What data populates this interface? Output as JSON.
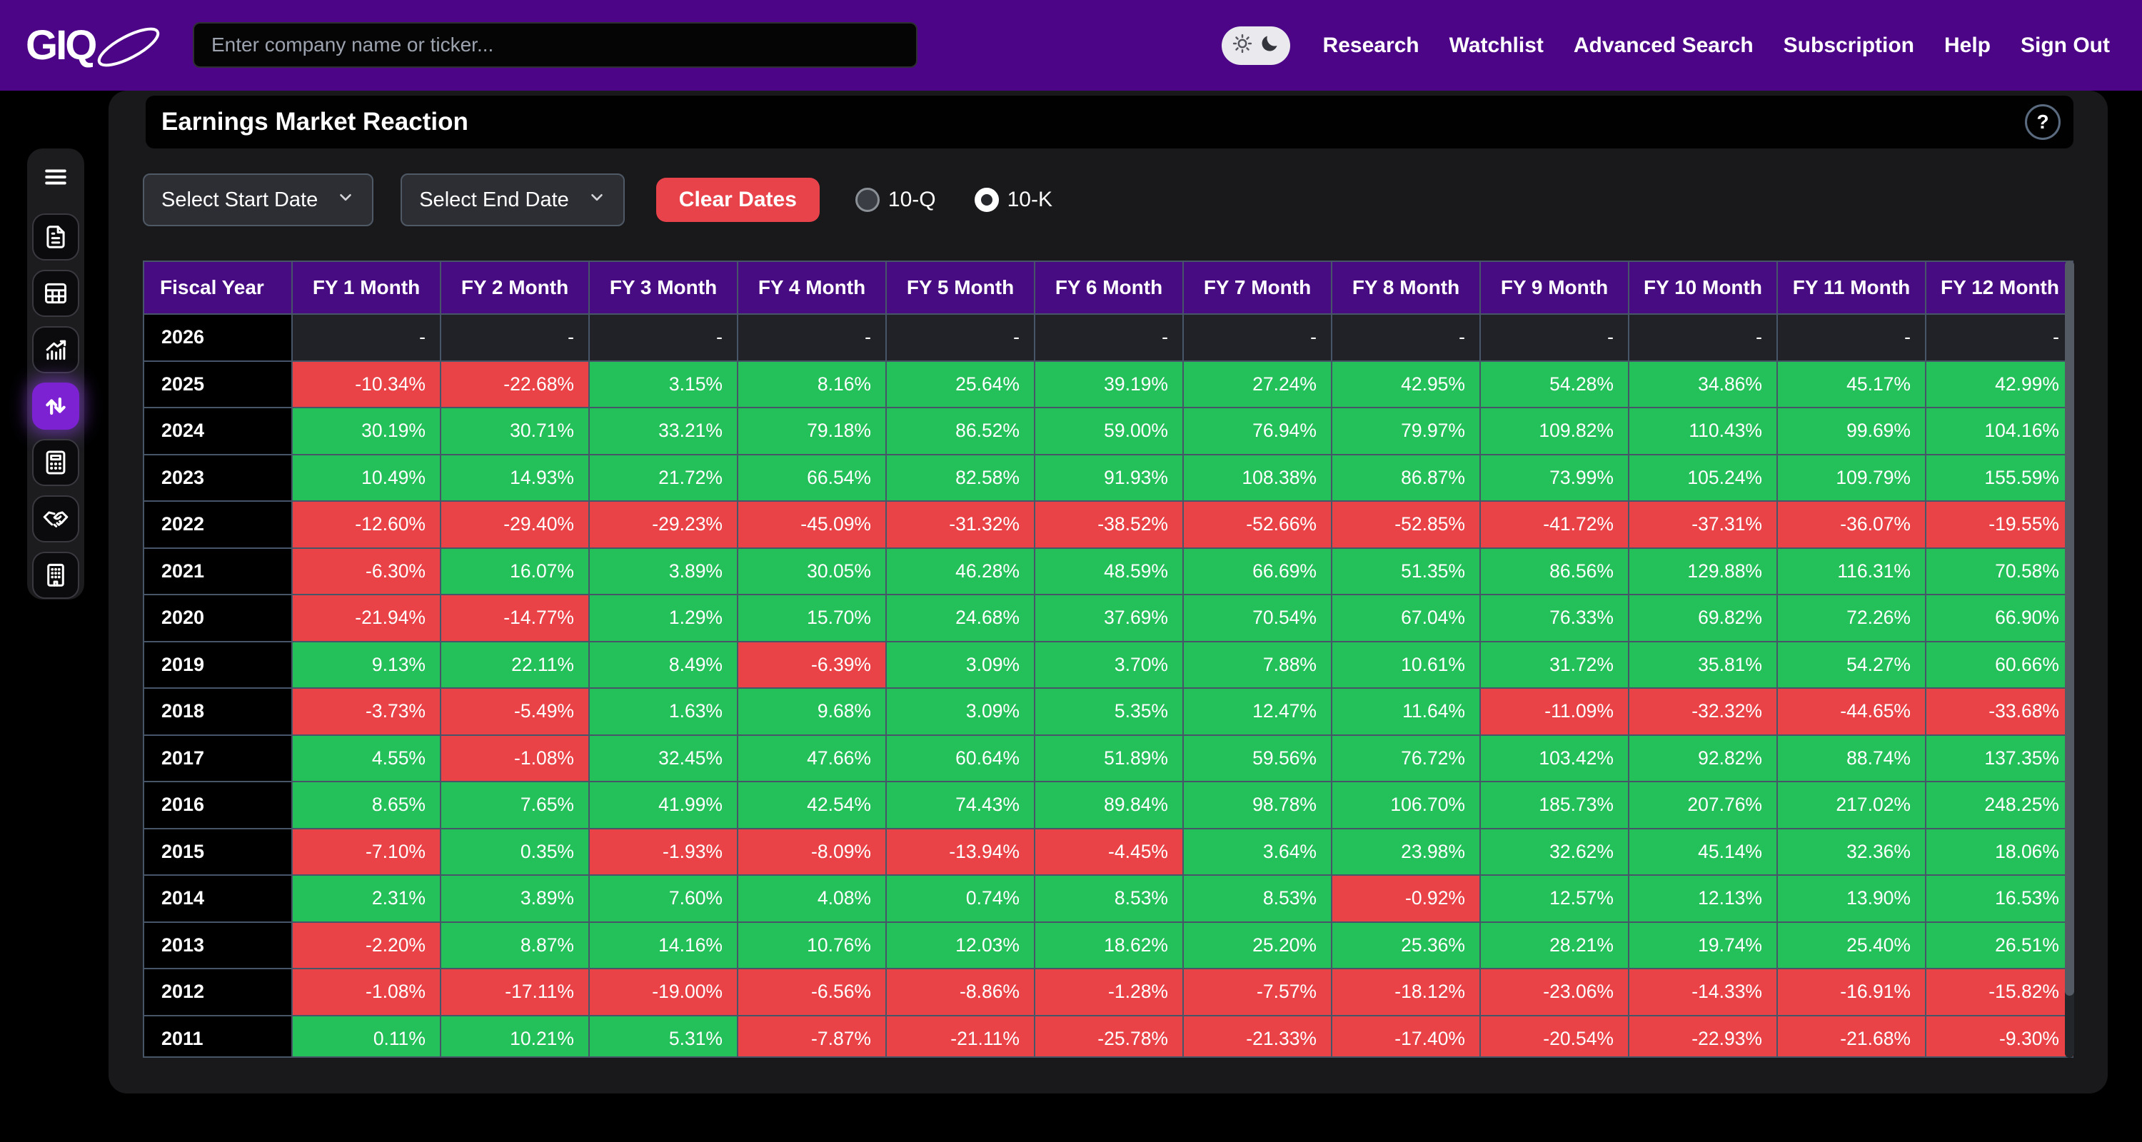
{
  "header": {
    "logo": "GIQ",
    "search_placeholder": "Enter company name or ticker...",
    "nav": [
      "Research",
      "Watchlist",
      "Advanced Search",
      "Subscription",
      "Help",
      "Sign Out"
    ],
    "theme_toggle_icons": [
      "sun-icon",
      "moon-icon"
    ]
  },
  "sidebar": {
    "items": [
      {
        "name": "menu",
        "icon": "hamburger-icon",
        "active": false
      },
      {
        "name": "documents",
        "icon": "file-text-icon",
        "active": false
      },
      {
        "name": "tables",
        "icon": "table-icon",
        "active": false
      },
      {
        "name": "charts",
        "icon": "chart-icon",
        "active": false
      },
      {
        "name": "earnings-reaction",
        "icon": "sort-arrows-icon",
        "active": true
      },
      {
        "name": "calculator",
        "icon": "calculator-icon",
        "active": false
      },
      {
        "name": "deals",
        "icon": "handshake-icon",
        "active": false
      },
      {
        "name": "company",
        "icon": "building-icon",
        "active": false
      }
    ]
  },
  "title_bar": {
    "title": "Earnings Market Reaction",
    "help_label": "?"
  },
  "filters": {
    "start_date_label": "Select Start Date",
    "end_date_label": "Select End Date",
    "clear_button": "Clear Dates",
    "radios": [
      {
        "label": "10-Q",
        "selected": false
      },
      {
        "label": "10-K",
        "selected": true
      }
    ]
  },
  "table": {
    "empty_value": "-",
    "columns": [
      "Fiscal Year",
      "FY 1 Month",
      "FY 2 Month",
      "FY 3 Month",
      "FY 4 Month",
      "FY 5 Month",
      "FY 6 Month",
      "FY 7 Month",
      "FY 8 Month",
      "FY 9 Month",
      "FY 10 Month",
      "FY 11 Month",
      "FY 12 Month"
    ],
    "rows": [
      {
        "year": "2026",
        "values": [
          "-",
          "-",
          "-",
          "-",
          "-",
          "-",
          "-",
          "-",
          "-",
          "-",
          "-",
          "-"
        ]
      },
      {
        "year": "2025",
        "values": [
          "-10.34%",
          "-22.68%",
          "3.15%",
          "8.16%",
          "25.64%",
          "39.19%",
          "27.24%",
          "42.95%",
          "54.28%",
          "34.86%",
          "45.17%",
          "42.99%"
        ]
      },
      {
        "year": "2024",
        "values": [
          "30.19%",
          "30.71%",
          "33.21%",
          "79.18%",
          "86.52%",
          "59.00%",
          "76.94%",
          "79.97%",
          "109.82%",
          "110.43%",
          "99.69%",
          "104.16%"
        ]
      },
      {
        "year": "2023",
        "values": [
          "10.49%",
          "14.93%",
          "21.72%",
          "66.54%",
          "82.58%",
          "91.93%",
          "108.38%",
          "86.87%",
          "73.99%",
          "105.24%",
          "109.79%",
          "155.59%"
        ]
      },
      {
        "year": "2022",
        "values": [
          "-12.60%",
          "-29.40%",
          "-29.23%",
          "-45.09%",
          "-31.32%",
          "-38.52%",
          "-52.66%",
          "-52.85%",
          "-41.72%",
          "-37.31%",
          "-36.07%",
          "-19.55%"
        ]
      },
      {
        "year": "2021",
        "values": [
          "-6.30%",
          "16.07%",
          "3.89%",
          "30.05%",
          "46.28%",
          "48.59%",
          "66.69%",
          "51.35%",
          "86.56%",
          "129.88%",
          "116.31%",
          "70.58%"
        ]
      },
      {
        "year": "2020",
        "values": [
          "-21.94%",
          "-14.77%",
          "1.29%",
          "15.70%",
          "24.68%",
          "37.69%",
          "70.54%",
          "67.04%",
          "76.33%",
          "69.82%",
          "72.26%",
          "66.90%"
        ]
      },
      {
        "year": "2019",
        "values": [
          "9.13%",
          "22.11%",
          "8.49%",
          "-6.39%",
          "3.09%",
          "3.70%",
          "7.88%",
          "10.61%",
          "31.72%",
          "35.81%",
          "54.27%",
          "60.66%"
        ]
      },
      {
        "year": "2018",
        "values": [
          "-3.73%",
          "-5.49%",
          "1.63%",
          "9.68%",
          "3.09%",
          "5.35%",
          "12.47%",
          "11.64%",
          "-11.09%",
          "-32.32%",
          "-44.65%",
          "-33.68%"
        ]
      },
      {
        "year": "2017",
        "values": [
          "4.55%",
          "-1.08%",
          "32.45%",
          "47.66%",
          "60.64%",
          "51.89%",
          "59.56%",
          "76.72%",
          "103.42%",
          "92.82%",
          "88.74%",
          "137.35%"
        ]
      },
      {
        "year": "2016",
        "values": [
          "8.65%",
          "7.65%",
          "41.99%",
          "42.54%",
          "74.43%",
          "89.84%",
          "98.78%",
          "106.70%",
          "185.73%",
          "207.76%",
          "217.02%",
          "248.25%"
        ]
      },
      {
        "year": "2015",
        "values": [
          "-7.10%",
          "0.35%",
          "-1.93%",
          "-8.09%",
          "-13.94%",
          "-4.45%",
          "3.64%",
          "23.98%",
          "32.62%",
          "45.14%",
          "32.36%",
          "18.06%"
        ]
      },
      {
        "year": "2014",
        "values": [
          "2.31%",
          "3.89%",
          "7.60%",
          "4.08%",
          "0.74%",
          "8.53%",
          "8.53%",
          "-0.92%",
          "12.57%",
          "12.13%",
          "13.90%",
          "16.53%"
        ]
      },
      {
        "year": "2013",
        "values": [
          "-2.20%",
          "8.87%",
          "14.16%",
          "10.76%",
          "12.03%",
          "18.62%",
          "25.20%",
          "25.36%",
          "28.21%",
          "19.74%",
          "25.40%",
          "26.51%"
        ]
      },
      {
        "year": "2012",
        "values": [
          "-1.08%",
          "-17.11%",
          "-19.00%",
          "-6.56%",
          "-8.86%",
          "-1.28%",
          "-7.57%",
          "-18.12%",
          "-23.06%",
          "-14.33%",
          "-16.91%",
          "-15.82%"
        ]
      },
      {
        "year": "2011",
        "values": [
          "0.11%",
          "10.21%",
          "5.31%",
          "-7.87%",
          "-21.11%",
          "-25.78%",
          "-21.33%",
          "-17.40%",
          "-20.54%",
          "-22.93%",
          "-21.68%",
          "-9.30%"
        ]
      }
    ]
  },
  "colors": {
    "accent_purple": "#4b0586",
    "table_header_purple": "#470b82",
    "positive_green": "#24c05a",
    "negative_red": "#ea4347",
    "clear_button_red": "#e8424a"
  }
}
